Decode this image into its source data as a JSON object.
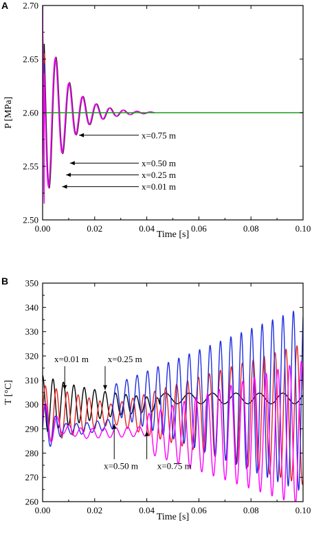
{
  "chart_data": [
    {
      "panel_label": "A",
      "type": "line",
      "xlabel": "Time [s]",
      "ylabel": "P [MPa]",
      "xlim": [
        0.0,
        0.1
      ],
      "ylim": [
        2.5,
        2.7
      ],
      "xticks": [
        "0.00",
        "0.02",
        "0.04",
        "0.06",
        "0.08",
        "0.10"
      ],
      "yticks": [
        "2.50",
        "2.55",
        "2.60",
        "2.65",
        "2.70"
      ],
      "equilibrium": 2.6,
      "colors": {
        "black": "#000000",
        "red": "#e8231f",
        "blue": "#1f2fe0",
        "magenta": "#ff00ff",
        "green": "#1a9b1a"
      },
      "series": [
        {
          "color": "black",
          "start": 2.7,
          "amp0": 0.095,
          "period": 0.0052,
          "decay": 0.0085,
          "end": 0.043
        },
        {
          "color": "red",
          "start": 2.7,
          "amp0": 0.093,
          "period": 0.0052,
          "decay": 0.0085,
          "end": 0.043
        },
        {
          "color": "blue",
          "start": 2.7,
          "amp0": 0.091,
          "period": 0.0052,
          "decay": 0.0085,
          "end": 0.043
        },
        {
          "color": "magenta",
          "start": 2.7,
          "amp0": 0.09,
          "period": 0.0052,
          "decay": 0.0085,
          "end": 0.043
        }
      ],
      "annotations": [
        {
          "text": "x=0.75 m",
          "label_at": [
            0.038,
            2.579
          ],
          "arrow_to": [
            0.014,
            2.579
          ]
        },
        {
          "text": "x=0.50 m",
          "label_at": [
            0.038,
            2.553
          ],
          "arrow_to": [
            0.0105,
            2.553
          ]
        },
        {
          "text": "x=0.25 m",
          "label_at": [
            0.038,
            2.542
          ],
          "arrow_to": [
            0.009,
            2.542
          ]
        },
        {
          "text": "x=0.01 m",
          "label_at": [
            0.038,
            2.531
          ],
          "arrow_to": [
            0.0075,
            2.531
          ]
        }
      ]
    },
    {
      "panel_label": "B",
      "type": "line",
      "xlabel": "Time [s]",
      "ylabel": "T [°C]",
      "xlim": [
        0.0,
        0.1
      ],
      "ylim": [
        260,
        350
      ],
      "xticks": [
        "0.00",
        "0.02",
        "0.04",
        "0.06",
        "0.08",
        "0.10"
      ],
      "yticks": [
        "260",
        "270",
        "280",
        "290",
        "300",
        "310",
        "320",
        "330",
        "340",
        "350"
      ],
      "colors": {
        "black": "#000000",
        "red": "#e8231f",
        "blue": "#1f2fe0",
        "magenta": "#ff00ff"
      },
      "series": [
        {
          "color": "black",
          "model": "decay",
          "base": 300,
          "amp0": 12,
          "tau": 0.03,
          "period": 0.004,
          "tail_period": 0.009,
          "tail_amp": 2.2
        },
        {
          "color": "red",
          "model": "decay-grow",
          "base": 296,
          "amp0": 12,
          "min_amp": 4,
          "min_at": 0.027,
          "max_amp": 29,
          "period": 0.0042,
          "end": 0.1
        },
        {
          "color": "blue",
          "model": "flat-then-grow",
          "base": 293,
          "segments": [
            [
              0.0,
              290
            ],
            [
              0.015,
              290
            ],
            [
              0.027,
              292
            ]
          ],
          "flat_amp": 2.2,
          "switch_at": 0.027,
          "grow_base": 302,
          "grow_amp_start": 6,
          "grow_amp_end": 38,
          "period": 0.004,
          "end": 0.1
        },
        {
          "color": "magenta",
          "model": "flat-then-grow",
          "base": 290,
          "segments": [
            [
              0.0,
              292
            ],
            [
              0.016,
              288
            ],
            [
              0.04,
              289
            ]
          ],
          "flat_amp": 2.0,
          "switch_at": 0.04,
          "grow_base": 288,
          "grow_amp_start": 8,
          "grow_amp_end": 30,
          "period": 0.0045,
          "end": 0.1
        }
      ],
      "annotations": [
        {
          "text": "x=0.01 m",
          "label_at": [
            0.0045,
            317.5
          ],
          "arrow_to": [
            0.0085,
            306
          ]
        },
        {
          "text": "x=0.25 m",
          "label_at": [
            0.025,
            317.5
          ],
          "arrow_to": [
            0.024,
            306
          ]
        },
        {
          "text": "x=0.50 m",
          "label_at": [
            0.0235,
            273.5
          ],
          "arrow_to": [
            0.0275,
            292
          ]
        },
        {
          "text": "x=0.75 m",
          "label_at": [
            0.044,
            273.5
          ],
          "arrow_to": [
            0.04,
            289
          ]
        }
      ]
    }
  ]
}
